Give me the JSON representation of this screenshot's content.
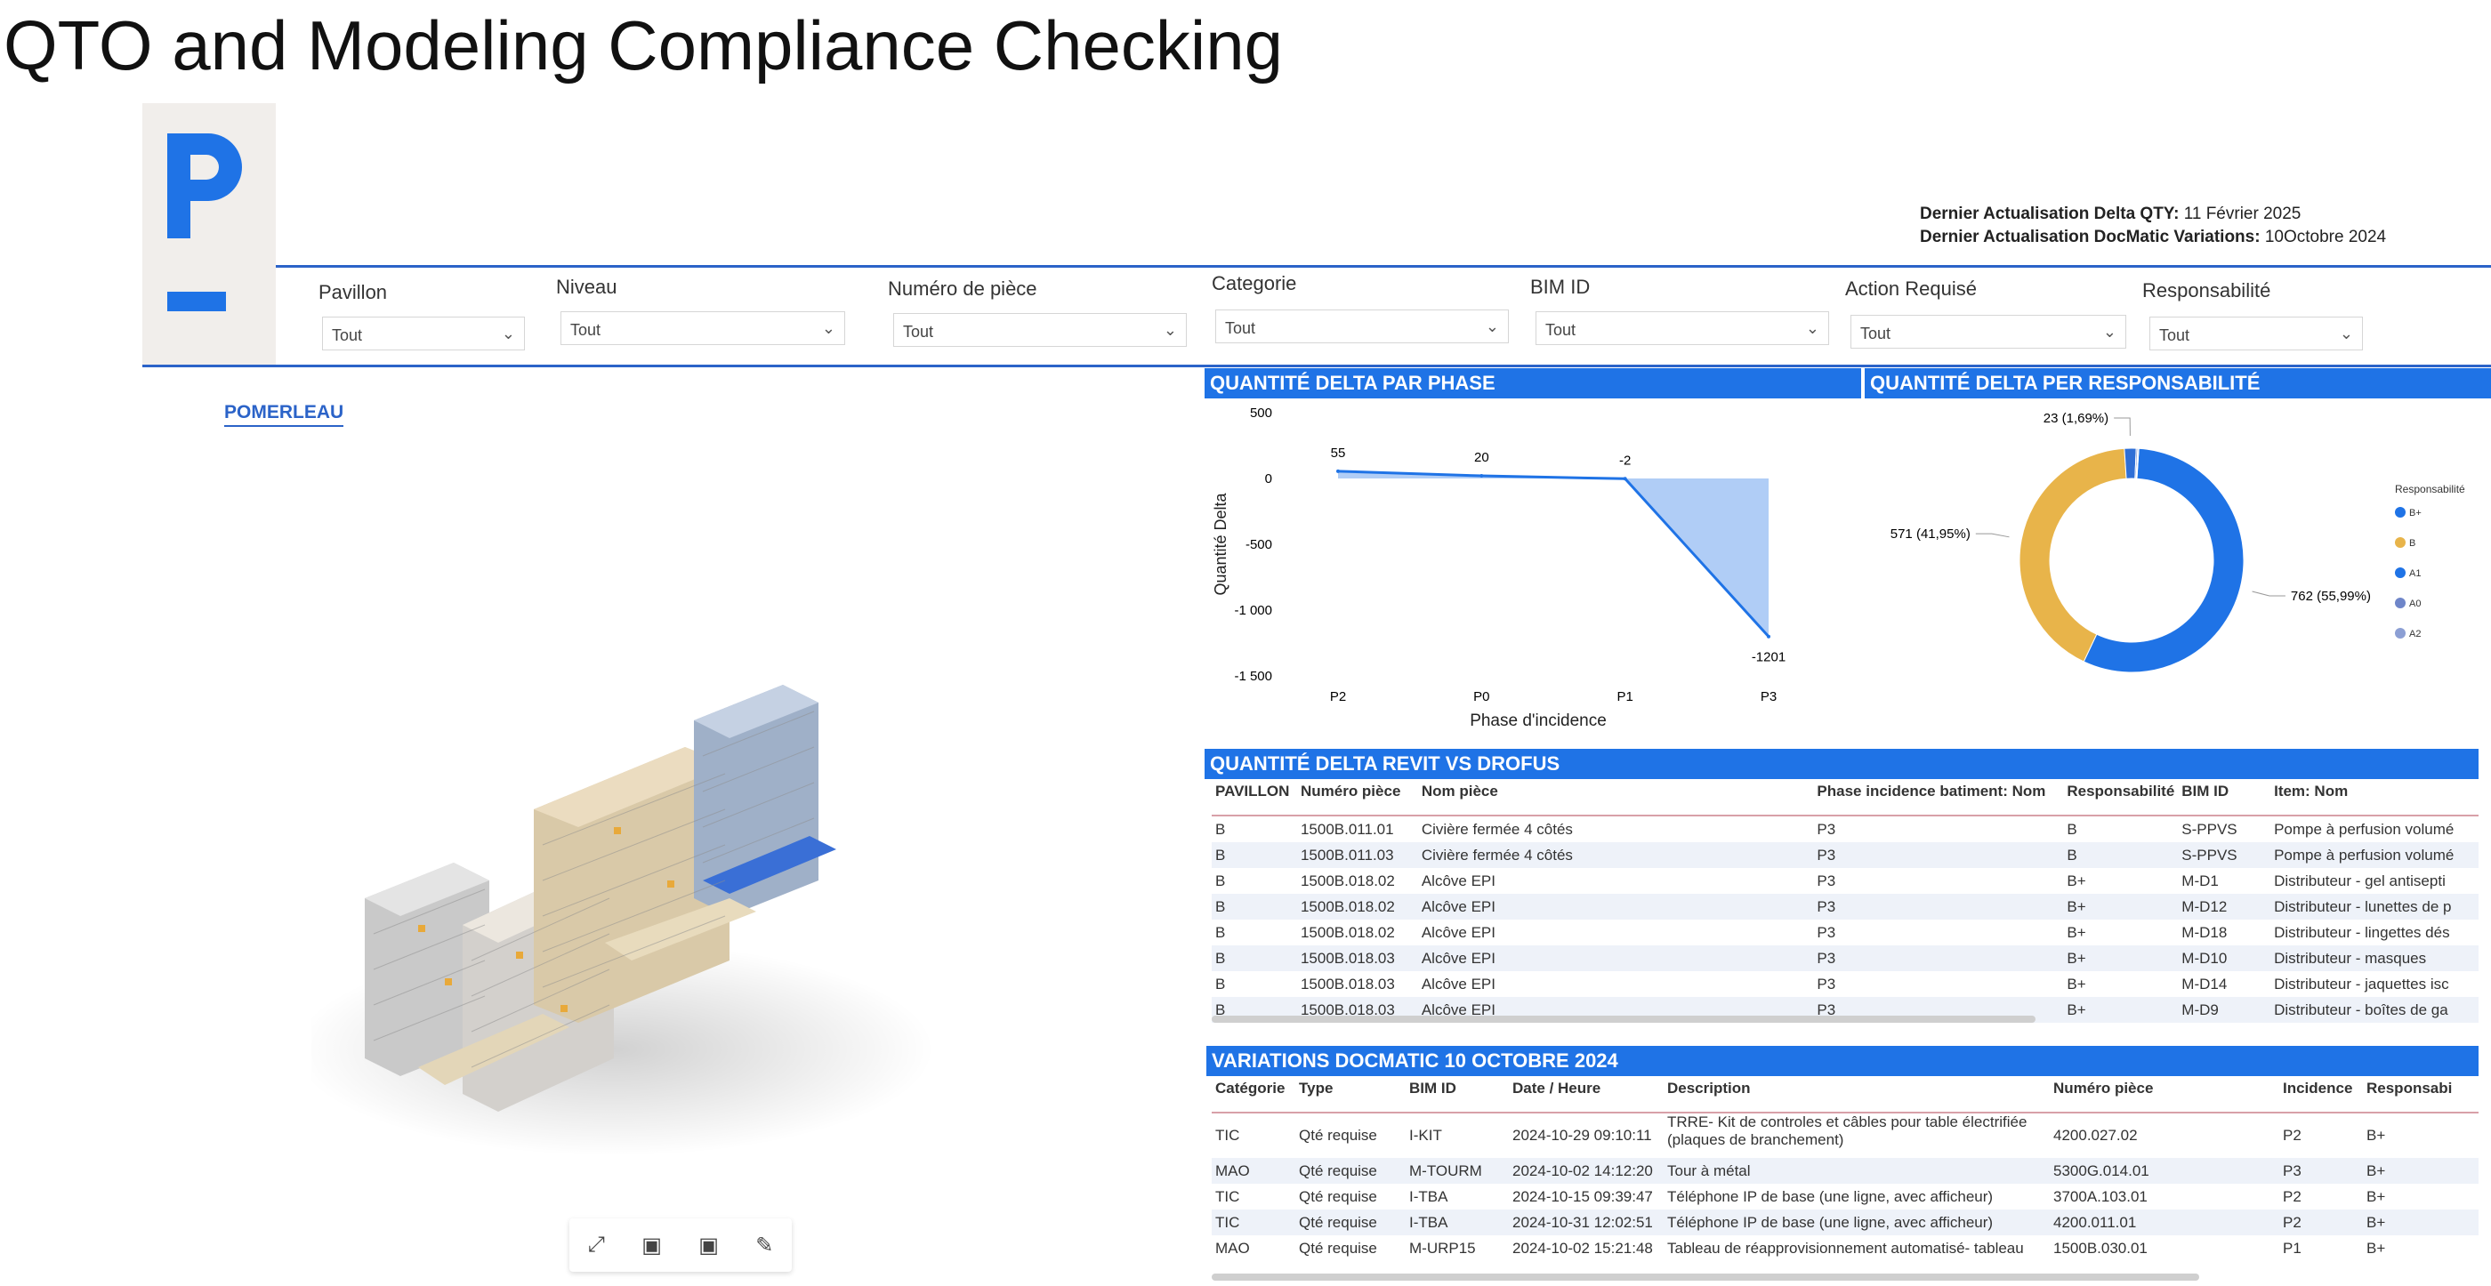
{
  "slide_title": "QTO and Modeling Compliance Checking",
  "updates": [
    {
      "label": "Dernier Actualisation Delta QTY:",
      "value": "11 Février 2025"
    },
    {
      "label": "Dernier Actualisation DocMatic Variations:",
      "value": "10Octobre 2024"
    }
  ],
  "filters": [
    {
      "label": "Pavillon",
      "value": "Tout"
    },
    {
      "label": "Niveau",
      "value": "Tout"
    },
    {
      "label": "Numéro de pièce",
      "value": "Tout"
    },
    {
      "label": "Categorie",
      "value": "Tout"
    },
    {
      "label": "BIM ID",
      "value": "Tout"
    },
    {
      "label": "Action Requisé",
      "value": "Tout"
    },
    {
      "label": "Responsabilité",
      "value": "Tout"
    }
  ],
  "brand": "POMERLEAU",
  "viewer_toolbar": [
    "expand-icon",
    "camera-icon",
    "cube-icon",
    "brush-icon"
  ],
  "panels": {
    "phase": "QUANTITÉ DELTA PAR PHASE",
    "resp": "QUANTITÉ DELTA PER RESPONSABILITÉ",
    "revit": "QUANTITÉ DELTA REVIT VS DROFUS",
    "docmatic": "VARIATIONS DOCMATIC 10 OCTOBRE 2024"
  },
  "chart_data": [
    {
      "type": "area",
      "title": "QUANTITÉ DELTA PAR PHASE",
      "xlabel": "Phase d'incidence",
      "ylabel": "Quantité Delta",
      "categories": [
        "P2",
        "P0",
        "P1",
        "P3"
      ],
      "values": [
        55,
        20,
        -2,
        -1201
      ],
      "data_labels": [
        "55",
        "20",
        "-2",
        "-1201"
      ],
      "yticks": [
        "500",
        "0",
        "-500",
        "-1 000",
        "-1 500"
      ],
      "ylim": [
        -1500,
        500
      ],
      "color": "#1f73e6",
      "fill_color": "#a7c8f5"
    },
    {
      "type": "pie",
      "title": "QUANTITÉ DELTA PER RESPONSABILITÉ",
      "legend_title": "Responsabilité",
      "legend_position": "right",
      "slices": [
        {
          "name": "A1",
          "value": 762,
          "label": "762 (55,99%)",
          "color": "#1f73e6"
        },
        {
          "name": "B",
          "value": 571,
          "label": "571 (41,95%)",
          "color": "#e8b44a"
        },
        {
          "name": "B+",
          "value": 23,
          "label": "23 (1,69%)",
          "color": "#2f6fd6"
        },
        {
          "name": "A0",
          "value": 3,
          "label": "",
          "color": "#6f86c9"
        },
        {
          "name": "A2",
          "value": 2,
          "label": "",
          "color": "#8c9fd4"
        }
      ],
      "legend": [
        {
          "name": "B+",
          "color": "#1f73e6"
        },
        {
          "name": "B",
          "color": "#e8b44a"
        },
        {
          "name": "A1",
          "color": "#1f73e6"
        },
        {
          "name": "A0",
          "color": "#6f86c9"
        },
        {
          "name": "A2",
          "color": "#8c9fd4"
        }
      ]
    }
  ],
  "revit_table": {
    "columns": [
      "PAVILLON",
      "Numéro pièce",
      "Nom pièce",
      "Phase incidence batiment: Nom",
      "Responsabilité",
      "BIM ID",
      "Item: Nom"
    ],
    "rows": [
      [
        "B",
        "1500B.011.01",
        "Civière fermée 4 côtés",
        "P3",
        "B",
        "S-PPVS",
        "Pompe à perfusion volumé"
      ],
      [
        "B",
        "1500B.011.03",
        "Civière fermée 4 côtés",
        "P3",
        "B",
        "S-PPVS",
        "Pompe à perfusion volumé"
      ],
      [
        "B",
        "1500B.018.02",
        "Alcôve EPI",
        "P3",
        "B+",
        "M-D1",
        "Distributeur - gel antisepti"
      ],
      [
        "B",
        "1500B.018.02",
        "Alcôve EPI",
        "P3",
        "B+",
        "M-D12",
        "Distributeur - lunettes de p"
      ],
      [
        "B",
        "1500B.018.02",
        "Alcôve EPI",
        "P3",
        "B+",
        "M-D18",
        "Distributeur - lingettes dés"
      ],
      [
        "B",
        "1500B.018.03",
        "Alcôve EPI",
        "P3",
        "B+",
        "M-D10",
        "Distributeur - masques"
      ],
      [
        "B",
        "1500B.018.03",
        "Alcôve EPI",
        "P3",
        "B+",
        "M-D14",
        "Distributeur - jaquettes isc"
      ],
      [
        "B",
        "1500B.018.03",
        "Alcôve EPI",
        "P3",
        "B+",
        "M-D9",
        "Distributeur - boîtes de ga"
      ]
    ]
  },
  "docmatic_table": {
    "columns": [
      "Catégorie",
      "Type",
      "BIM ID",
      "Date / Heure",
      "Description",
      "Numéro pièce",
      "Incidence",
      "Responsabi"
    ],
    "rows": [
      [
        "TIC",
        "Qté requise",
        "I-KIT",
        "2024-10-29 09:10:11",
        "TRRE- Kit de controles et câbles pour table électrifiée",
        "4200.027.02",
        "P2",
        "B+"
      ],
      [
        "MAO",
        "Qté requise",
        "M-TOURM",
        "2024-10-02 14:12:20",
        "Tour à métal",
        "5300G.014.01",
        "P3",
        "B+"
      ],
      [
        "TIC",
        "Qté requise",
        "I-TBA",
        "2024-10-15 09:39:47",
        "Téléphone IP de base (une ligne, avec afficheur)",
        "3700A.103.01",
        "P2",
        "B+"
      ],
      [
        "TIC",
        "Qté requise",
        "I-TBA",
        "2024-10-31 12:02:51",
        "Téléphone IP de base (une ligne, avec afficheur)",
        "4200.011.01",
        "P2",
        "B+"
      ],
      [
        "MAO",
        "Qté requise",
        "M-URP15",
        "2024-10-02 15:21:48",
        "Tableau de réapprovisionnement automatisé- tableau",
        "1500B.030.01",
        "P1",
        "B+"
      ]
    ],
    "first_row_desc_line2": "(plaques de branchement)"
  }
}
